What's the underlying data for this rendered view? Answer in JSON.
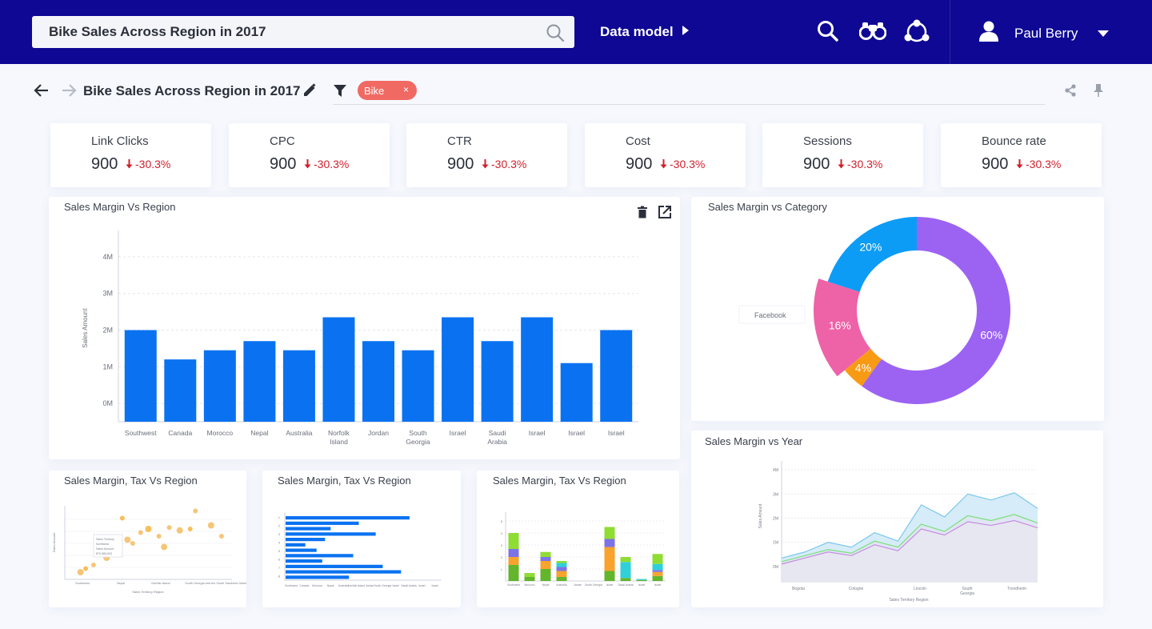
{
  "header": {
    "search_value": "Bike Sales Across Region in 2017",
    "data_model_label": "Data model",
    "user_name": "Paul Berry"
  },
  "subheader": {
    "title": "Bike Sales Across Region in 2017",
    "filter_chip": "Bike",
    "chip_close": "×"
  },
  "kpis": [
    {
      "label": "Link Clicks",
      "value": "900",
      "change": "-30.3%"
    },
    {
      "label": "CPC",
      "value": "900",
      "change": "-30.3%"
    },
    {
      "label": "CTR",
      "value": "900",
      "change": "-30.3%"
    },
    {
      "label": "Cost",
      "value": "900",
      "change": "-30.3%"
    },
    {
      "label": "Sessions",
      "value": "900",
      "change": "-30.3%"
    },
    {
      "label": "Bounce rate",
      "value": "900",
      "change": "-30.3%"
    }
  ],
  "panels": {
    "region": "Sales Margin Vs Region",
    "category": "Sales Margin vs Category",
    "year": "Sales Margin vs Year",
    "tax1": "Sales Margin, Tax Vs Region",
    "tax2": "Sales Margin, Tax Vs Region",
    "tax3": "Sales Margin, Tax Vs Region"
  },
  "colors": {
    "topbar": "#0e0894",
    "bar": "#0a72f0",
    "negative": "#d01f2b",
    "chip": "#f06a63"
  },
  "chart_data": [
    {
      "type": "bar",
      "title": "Sales Margin Vs Region",
      "ylabel": "Sales Amount",
      "ytick_labels": [
        "0M",
        "1M",
        "2M",
        "3M",
        "4M"
      ],
      "categories": [
        "Southwest",
        "Canada",
        "Morocco",
        "Nepal",
        "Australia",
        "Norfolk Island",
        "Jordan",
        "South Georgia",
        "Israel",
        "Saudi Arabia",
        "Israel",
        "Israel",
        "Israel"
      ],
      "values": [
        2.0,
        1.2,
        1.45,
        1.7,
        1.45,
        2.35,
        1.7,
        1.45,
        2.35,
        1.7,
        2.35,
        1.1,
        2.0
      ],
      "ylim": [
        -0.5,
        4.5
      ],
      "grid": true
    },
    {
      "type": "pie",
      "title": "Sales Margin vs Category",
      "labels": [
        "60%",
        "4%",
        "16%",
        "20%"
      ],
      "values": [
        60,
        4,
        16,
        20
      ],
      "colors": [
        "#9c63f3",
        "#f99a14",
        "#ee62a8",
        "#0d9cf5"
      ],
      "tooltip": "Facebook"
    },
    {
      "type": "area",
      "title": "Sales Margin vs Year",
      "ylabel": "Sales Amount",
      "xlabel": "Sales Territory Region",
      "ytick_labels": [
        "0M",
        "1M",
        "2M",
        "3M",
        "4M"
      ],
      "xtick_labels": [
        "Bogota",
        "Cologne",
        "Lincoln",
        "South Georgia",
        "Trondheim"
      ],
      "series": [
        {
          "values": [
            0.35,
            0.6,
            1.0,
            0.8,
            1.4,
            1.05,
            2.55,
            2.05,
            3.0,
            2.75,
            3.05,
            2.4
          ]
        },
        {
          "values": [
            0.2,
            0.45,
            0.7,
            0.55,
            1.05,
            0.8,
            1.75,
            1.45,
            2.1,
            1.9,
            2.15,
            1.8
          ]
        },
        {
          "values": [
            0.1,
            0.35,
            0.6,
            0.45,
            0.9,
            0.65,
            1.55,
            1.3,
            1.85,
            1.7,
            1.9,
            1.6
          ]
        }
      ],
      "ylim": [
        -0.5,
        4.2
      ]
    },
    {
      "type": "scatter",
      "title": "Sales Margin, Tax Vs Region",
      "xtick_labels": [
        "Southwest",
        "Nepal",
        "Norfolk Island",
        "South Georgia and the South Sandwich Islands"
      ],
      "xlabel": "Sales Territory Region",
      "ylabel": "Sales Amount",
      "tooltip_lines": [
        "Sales Territory",
        "Northwest",
        "Sales Amount",
        "$70,589,603"
      ],
      "points": [
        {
          "x": 0.3,
          "y": 0.1
        },
        {
          "x": 0.4,
          "y": 0.15
        },
        {
          "x": 0.55,
          "y": 0.2
        },
        {
          "x": 0.8,
          "y": 0.3
        },
        {
          "x": 0.9,
          "y": 0.35
        },
        {
          "x": 1.0,
          "y": 0.45
        },
        {
          "x": 1.2,
          "y": 0.55
        },
        {
          "x": 1.3,
          "y": 0.5
        },
        {
          "x": 1.45,
          "y": 0.65
        },
        {
          "x": 1.6,
          "y": 0.7
        },
        {
          "x": 1.8,
          "y": 0.6
        },
        {
          "x": 2.0,
          "y": 0.72
        },
        {
          "x": 2.2,
          "y": 0.68
        },
        {
          "x": 2.4,
          "y": 0.7
        },
        {
          "x": 2.5,
          "y": 0.95
        },
        {
          "x": 2.8,
          "y": 0.75
        },
        {
          "x": 3.0,
          "y": 0.6
        },
        {
          "x": 1.1,
          "y": 0.85
        },
        {
          "x": 1.9,
          "y": 0.45
        }
      ]
    },
    {
      "type": "bar",
      "title": "Sales Margin, Tax Vs Region",
      "orientation": "horizontal",
      "ytick_labels": [
        "1",
        "2",
        "3",
        "4",
        "5",
        "6",
        "7",
        "8"
      ],
      "xtick_labels": [
        "Southwest",
        "Canada",
        "Morocco",
        "Nepal",
        "Australia",
        "Norfolk Island",
        "Jordan",
        "South Georgia",
        "Israel",
        "Saudi Arabia",
        "Israel",
        "Israel"
      ],
      "values": [
        0.88,
        0.52,
        0.32,
        0.64,
        0.28,
        0.14,
        0.22,
        0.48,
        0.26,
        0.69,
        0.82,
        0.45
      ]
    },
    {
      "type": "bar",
      "title": "Sales Margin, Tax Vs Region",
      "stacked": true,
      "ytick_labels": [
        "1",
        "2",
        "3",
        "4",
        "5"
      ],
      "categories": [
        "Southwest",
        "Morocco",
        "Nepal",
        "Australia",
        "Jordan",
        "South Georgia",
        "Israel",
        "Saudi Arabia",
        "Israel",
        "Israel"
      ],
      "series": [
        {
          "name": "green",
          "values": [
            1.6,
            0.4,
            1.2,
            0.4,
            0,
            0,
            1.0,
            0.3,
            0.1,
            0.5
          ]
        },
        {
          "name": "orange",
          "values": [
            0.8,
            0,
            0.8,
            0.6,
            0,
            0,
            2.4,
            0,
            0,
            0.4
          ]
        },
        {
          "name": "purple",
          "values": [
            0.8,
            0,
            0.4,
            0.4,
            0,
            0,
            0.8,
            0,
            0,
            0.2
          ]
        },
        {
          "name": "cyan",
          "values": [
            0,
            0,
            0,
            0.4,
            0,
            0,
            0,
            1.6,
            0.1,
            0.6
          ]
        },
        {
          "name": "lime",
          "values": [
            1.6,
            0.4,
            0.5,
            0.2,
            0,
            0,
            1.2,
            0.5,
            0,
            1.0
          ]
        }
      ]
    }
  ]
}
